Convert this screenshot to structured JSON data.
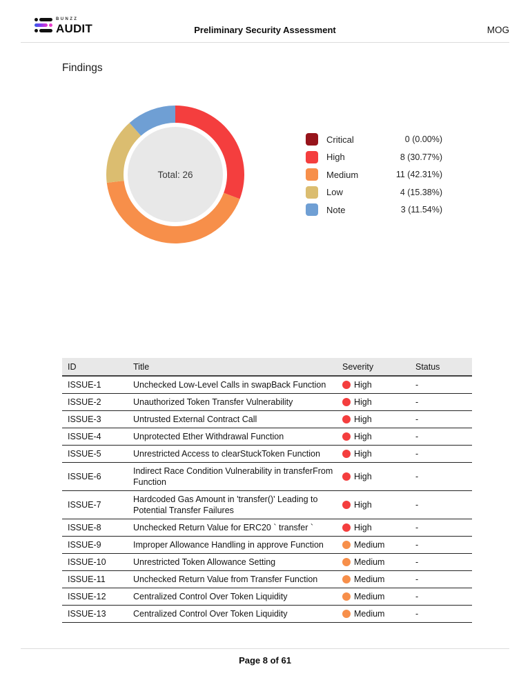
{
  "header": {
    "brand_small": "BUNZZ",
    "brand_large": "AUDIT",
    "title": "Preliminary Security Assessment",
    "project": "MOG"
  },
  "section_title": "Findings",
  "chart_data": {
    "type": "pie",
    "subtype": "donut",
    "center_label": "Total: 26",
    "total": 26,
    "legend_position": "right",
    "inner_circle_color": "#E8E8E8",
    "series": [
      {
        "name": "Critical",
        "value": 0,
        "display": "0 (0.00%)",
        "color": "#97141B"
      },
      {
        "name": "High",
        "value": 8,
        "display": "8 (30.77%)",
        "color": "#F43E3E"
      },
      {
        "name": "Medium",
        "value": 11,
        "display": "11 (42.31%)",
        "color": "#F78F4A"
      },
      {
        "name": "Low",
        "value": 4,
        "display": "4 (15.38%)",
        "color": "#DBBD70"
      },
      {
        "name": "Note",
        "value": 3,
        "display": "3 (11.54%)",
        "color": "#6F9FD4"
      }
    ]
  },
  "severity_colors": {
    "Critical": "#97141B",
    "High": "#F43E3E",
    "Medium": "#F78F4A",
    "Low": "#DBBD70",
    "Note": "#6F9FD4"
  },
  "table": {
    "columns": [
      "ID",
      "Title",
      "Severity",
      "Status"
    ],
    "rows": [
      {
        "id": "ISSUE-1",
        "title": "Unchecked Low-Level Calls in swapBack Function",
        "severity": "High",
        "status": "-"
      },
      {
        "id": "ISSUE-2",
        "title": "Unauthorized Token Transfer Vulnerability",
        "severity": "High",
        "status": "-"
      },
      {
        "id": "ISSUE-3",
        "title": "Untrusted External Contract Call",
        "severity": "High",
        "status": "-"
      },
      {
        "id": "ISSUE-4",
        "title": "Unprotected Ether Withdrawal Function",
        "severity": "High",
        "status": "-"
      },
      {
        "id": "ISSUE-5",
        "title": "Unrestricted Access to clearStuckToken Function",
        "severity": "High",
        "status": "-"
      },
      {
        "id": "ISSUE-6",
        "title": "Indirect Race Condition Vulnerability in transferFrom Function",
        "severity": "High",
        "status": "-"
      },
      {
        "id": "ISSUE-7",
        "title": "Hardcoded Gas Amount in 'transfer()' Leading to Potential Transfer Failures",
        "severity": "High",
        "status": "-"
      },
      {
        "id": "ISSUE-8",
        "title": "Unchecked Return Value for ERC20 ` transfer `",
        "severity": "High",
        "status": "-"
      },
      {
        "id": "ISSUE-9",
        "title": "Improper Allowance Handling in approve Function",
        "severity": "Medium",
        "status": "-"
      },
      {
        "id": "ISSUE-10",
        "title": "Unrestricted Token Allowance Setting",
        "severity": "Medium",
        "status": "-"
      },
      {
        "id": "ISSUE-11",
        "title": "Unchecked Return Value from Transfer Function",
        "severity": "Medium",
        "status": "-"
      },
      {
        "id": "ISSUE-12",
        "title": "Centralized Control Over Token Liquidity",
        "severity": "Medium",
        "status": "-"
      },
      {
        "id": "ISSUE-13",
        "title": "Centralized Control Over Token Liquidity",
        "severity": "Medium",
        "status": "-"
      }
    ]
  },
  "footer": {
    "page_label": "Page 8 of 61"
  }
}
